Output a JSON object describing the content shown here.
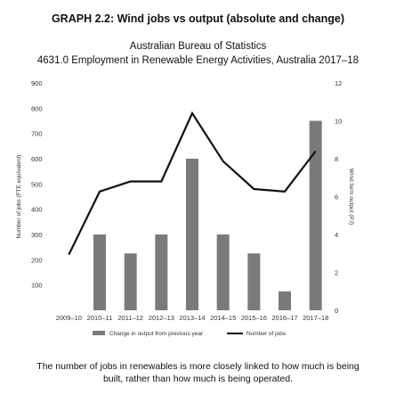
{
  "title": "GRAPH 2.2: Wind jobs vs output (absolute and change)",
  "source_line1": "Australian Bureau of Statistics",
  "source_line2": "4631.0 Employment in Renewable Energy Activities, Australia 2017–18",
  "caption": "The number of jobs in renewables is more closely linked to how much is being built, rather than how much is being operated.",
  "chart_data": {
    "type": "bar",
    "categories": [
      "2009–10",
      "2010–11",
      "2011–12",
      "2012–13",
      "2013–14",
      "2014–15",
      "2015–16",
      "2016–17",
      "2017–18"
    ],
    "series": [
      {
        "name": "Change in output from previous year",
        "type": "bar",
        "axis": "right",
        "color": "#7a7a7a",
        "values": [
          null,
          4,
          3,
          4,
          8,
          4,
          3,
          1,
          10
        ]
      },
      {
        "name": "Number of jobs",
        "type": "line",
        "axis": "left",
        "color": "#111111",
        "values": [
          220,
          470,
          510,
          510,
          780,
          590,
          480,
          470,
          630
        ]
      }
    ],
    "ylabel": "Number of jobs (FTE equivalent)",
    "ylabel_right": "Wind farm output (PJ)",
    "ylim": [
      0,
      900
    ],
    "ylim_right": [
      0,
      12
    ],
    "yticks": [
      "",
      "100",
      "200",
      "300",
      "400",
      "500",
      "600",
      "700",
      "800",
      "900"
    ],
    "yticks_right": [
      "0",
      "",
      "2",
      "",
      "4",
      "",
      "6",
      "",
      "8",
      "",
      "10",
      "",
      "12"
    ],
    "legend_position": "bottom",
    "grid": false
  }
}
